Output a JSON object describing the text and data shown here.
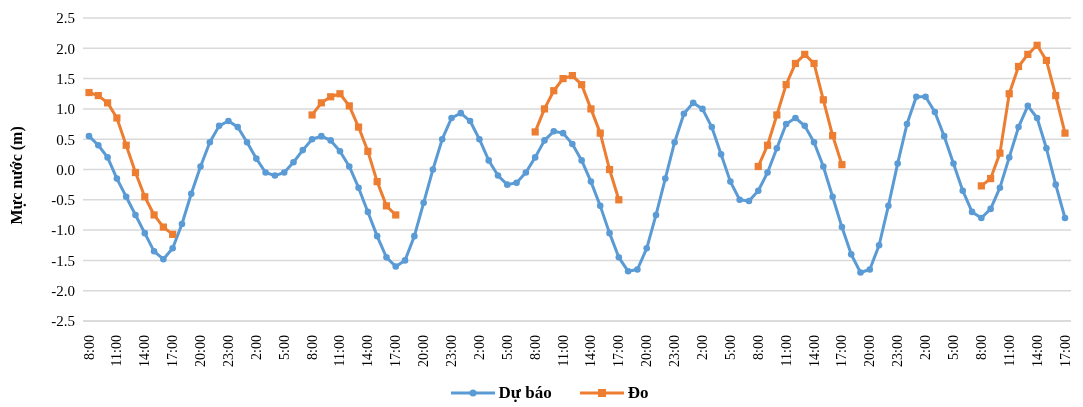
{
  "chart_data": {
    "type": "line",
    "ylabel": "Mực nước (m)",
    "categories": [
      "8:00",
      null,
      null,
      "11:00",
      null,
      null,
      "14:00",
      null,
      null,
      "17:00",
      null,
      null,
      "20:00",
      null,
      null,
      "23:00",
      null,
      null,
      "2:00",
      null,
      null,
      "5:00",
      null,
      null,
      "8:00",
      null,
      null,
      "11:00",
      null,
      null,
      "14:00",
      null,
      null,
      "17:00",
      null,
      null,
      "20:00",
      null,
      null,
      "23:00",
      null,
      null,
      "2:00",
      null,
      null,
      "5:00",
      null,
      null,
      "8:00",
      null,
      null,
      "11:00",
      null,
      null,
      "14:00",
      null,
      null,
      "17:00",
      null,
      null,
      "20:00",
      null,
      null,
      "23:00",
      null,
      null,
      "2:00",
      null,
      null,
      "5:00",
      null,
      null,
      "8:00",
      null,
      null,
      "11:00",
      null,
      null,
      "14:00",
      null,
      null,
      "17:00",
      null,
      null,
      "20:00",
      null,
      null,
      "23:00",
      null,
      null,
      "2:00",
      null,
      null,
      "5:00",
      null,
      null,
      "8:00",
      null,
      null,
      "11:00",
      null,
      null,
      "14:00",
      null,
      null,
      "17:00"
    ],
    "series": [
      {
        "name": "Dự báo",
        "color": "#5b9bd5",
        "marker": "circle",
        "values": [
          0.55,
          0.4,
          0.2,
          -0.15,
          -0.45,
          -0.75,
          -1.05,
          -1.35,
          -1.48,
          -1.3,
          -0.9,
          -0.4,
          0.05,
          0.45,
          0.72,
          0.8,
          0.7,
          0.45,
          0.18,
          -0.05,
          -0.1,
          -0.05,
          0.12,
          0.32,
          0.5,
          0.55,
          0.48,
          0.3,
          0.05,
          -0.3,
          -0.7,
          -1.1,
          -1.45,
          -1.6,
          -1.5,
          -1.1,
          -0.55,
          0.0,
          0.5,
          0.85,
          0.93,
          0.8,
          0.5,
          0.15,
          -0.1,
          -0.25,
          -0.22,
          -0.05,
          0.2,
          0.48,
          0.63,
          0.6,
          0.42,
          0.15,
          -0.2,
          -0.6,
          -1.05,
          -1.45,
          -1.68,
          -1.65,
          -1.3,
          -0.75,
          -0.15,
          0.45,
          0.92,
          1.1,
          1.0,
          0.7,
          0.25,
          -0.2,
          -0.5,
          -0.52,
          -0.35,
          -0.05,
          0.35,
          0.75,
          0.85,
          0.72,
          0.45,
          0.05,
          -0.45,
          -0.95,
          -1.4,
          -1.7,
          -1.65,
          -1.25,
          -0.6,
          0.1,
          0.75,
          1.2,
          1.2,
          0.95,
          0.55,
          0.1,
          -0.35,
          -0.7,
          -0.8,
          -0.65,
          -0.3,
          0.2,
          0.7,
          1.05,
          0.85,
          0.35,
          -0.25,
          -0.8
        ]
      },
      {
        "name": "Đo",
        "color": "#ed7d31",
        "marker": "square",
        "values": [
          1.27,
          1.22,
          1.1,
          0.85,
          0.4,
          -0.05,
          -0.45,
          -0.75,
          -0.95,
          -1.07,
          null,
          null,
          null,
          null,
          null,
          null,
          null,
          null,
          null,
          null,
          null,
          null,
          null,
          null,
          0.9,
          1.1,
          1.2,
          1.25,
          1.05,
          0.7,
          0.3,
          -0.2,
          -0.6,
          -0.75,
          null,
          null,
          null,
          null,
          null,
          null,
          null,
          null,
          null,
          null,
          null,
          null,
          null,
          null,
          0.62,
          1.0,
          1.3,
          1.5,
          1.55,
          1.4,
          1.0,
          0.6,
          0.0,
          -0.5,
          null,
          null,
          null,
          null,
          null,
          null,
          null,
          null,
          null,
          null,
          null,
          null,
          null,
          null,
          0.05,
          0.4,
          0.9,
          1.4,
          1.75,
          1.9,
          1.75,
          1.15,
          0.56,
          0.08,
          null,
          null,
          null,
          null,
          null,
          null,
          null,
          null,
          null,
          null,
          null,
          null,
          null,
          null,
          -0.27,
          -0.15,
          0.27,
          1.25,
          1.7,
          1.9,
          2.05,
          1.8,
          1.22,
          0.6
        ]
      }
    ],
    "ylim": [
      -2.5,
      2.5
    ],
    "yticks": [
      -2.5,
      {
        "value": -2,
        "label": "-2.0"
      },
      -1.5,
      {
        "value": -1,
        "label": "-1.0"
      },
      -0.5,
      {
        "value": 0,
        "label": "0.0"
      },
      0.5,
      {
        "value": 1,
        "label": "1.0"
      },
      1.5,
      {
        "value": 2,
        "label": "2.0"
      },
      2.5
    ],
    "grid": "y",
    "legend": "bottom"
  }
}
